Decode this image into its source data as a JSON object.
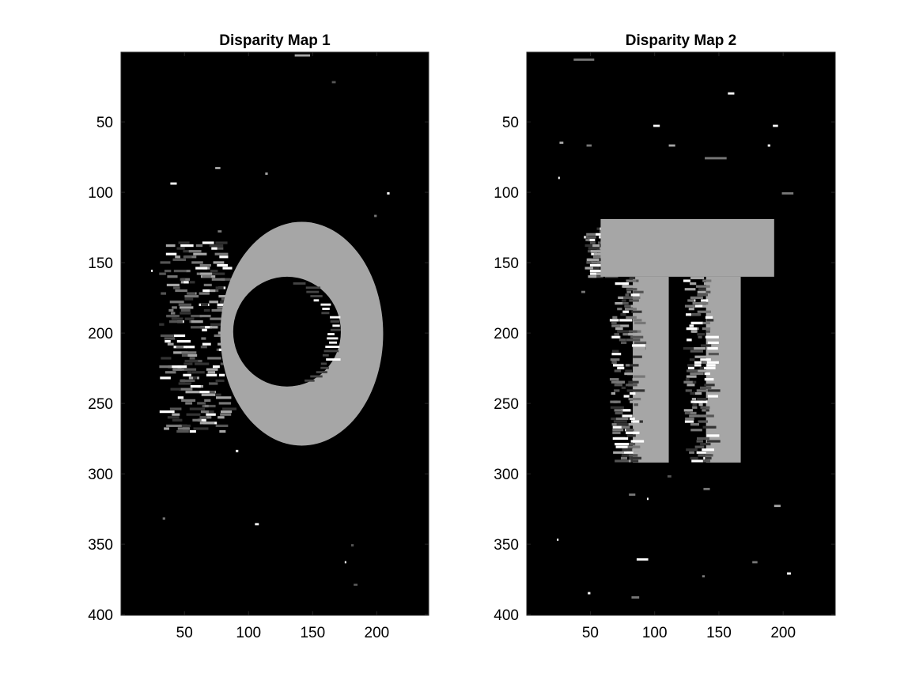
{
  "figure": {
    "background": "#ffffff"
  },
  "chart_data": [
    {
      "type": "heatmap",
      "title": "Disparity Map 1",
      "colormap": "gray",
      "background_color": "#000000",
      "main_color": "#a6a6a6",
      "xlim": [
        0.5,
        240.5
      ],
      "ylim": [
        0.5,
        400.5
      ],
      "y_reversed": true,
      "xticks": [
        50,
        100,
        150,
        200
      ],
      "yticks": [
        50,
        100,
        150,
        200,
        250,
        300,
        350,
        400
      ],
      "xlabel": "",
      "ylabel": "",
      "shape": {
        "kind": "ring",
        "outer": {
          "x": [
            78,
            205
          ],
          "y": [
            121,
            280
          ]
        },
        "inner": {
          "x": [
            88,
            172
          ],
          "y": [
            160,
            238
          ]
        }
      },
      "noise_band": {
        "x": [
          30,
          80
        ],
        "y": [
          135,
          270
        ]
      },
      "speckles": [
        {
          "x": 136,
          "y": 2,
          "w": 12,
          "c": "#a6a6a6"
        },
        {
          "x": 165,
          "y": 21,
          "w": 3,
          "c": "#555555"
        },
        {
          "x": 74,
          "y": 82,
          "w": 4,
          "c": "#a6a6a6"
        },
        {
          "x": 113,
          "y": 86,
          "w": 2,
          "c": "#a6a6a6"
        },
        {
          "x": 39,
          "y": 93,
          "w": 5,
          "c": "#ffffff"
        },
        {
          "x": 208,
          "y": 100,
          "w": 2,
          "c": "#ffffff"
        },
        {
          "x": 198,
          "y": 116,
          "w": 2,
          "c": "#777777"
        },
        {
          "x": 76,
          "y": 127,
          "w": 3,
          "c": "#777777"
        },
        {
          "x": 24,
          "y": 155,
          "w": 1,
          "c": "#ffffff"
        },
        {
          "x": 90,
          "y": 283,
          "w": 2,
          "c": "#ffffff"
        },
        {
          "x": 33,
          "y": 331,
          "w": 2,
          "c": "#777777"
        },
        {
          "x": 105,
          "y": 335,
          "w": 3,
          "c": "#ffffff"
        },
        {
          "x": 180,
          "y": 350,
          "w": 2,
          "c": "#555555"
        },
        {
          "x": 175,
          "y": 362,
          "w": 1,
          "c": "#ffffff"
        },
        {
          "x": 182,
          "y": 378,
          "w": 3,
          "c": "#555555"
        }
      ]
    },
    {
      "type": "heatmap",
      "title": "Disparity Map 2",
      "colormap": "gray",
      "background_color": "#000000",
      "main_color": "#a6a6a6",
      "xlim": [
        0.5,
        240.5
      ],
      "ylim": [
        0.5,
        400.5
      ],
      "y_reversed": true,
      "xticks": [
        50,
        100,
        150,
        200
      ],
      "yticks": [
        50,
        100,
        150,
        200,
        250,
        300,
        350,
        400
      ],
      "xlabel": "",
      "ylabel": "",
      "shape": {
        "kind": "pi",
        "bar": {
          "x": [
            58,
            193
          ],
          "y": [
            119,
            160
          ]
        },
        "legs": [
          {
            "x": [
              83,
              111
            ],
            "y": [
              160,
              292
            ]
          },
          {
            "x": [
              140,
              167
            ],
            "y": [
              160,
              292
            ]
          }
        ]
      },
      "noise_band": {
        "x": [
          45,
          62
        ],
        "y": [
          125,
          160
        ]
      },
      "speckles": [
        {
          "x": 37,
          "y": 5,
          "w": 16,
          "c": "#777777"
        },
        {
          "x": 157,
          "y": 29,
          "w": 5,
          "c": "#ffffff"
        },
        {
          "x": 99,
          "y": 52,
          "w": 5,
          "c": "#ffffff"
        },
        {
          "x": 192,
          "y": 52,
          "w": 4,
          "c": "#ffffff"
        },
        {
          "x": 26,
          "y": 64,
          "w": 3,
          "c": "#a6a6a6"
        },
        {
          "x": 47,
          "y": 66,
          "w": 4,
          "c": "#777777"
        },
        {
          "x": 111,
          "y": 66,
          "w": 5,
          "c": "#a6a6a6"
        },
        {
          "x": 188,
          "y": 66,
          "w": 2,
          "c": "#ffffff"
        },
        {
          "x": 139,
          "y": 75,
          "w": 17,
          "c": "#777777"
        },
        {
          "x": 25,
          "y": 89,
          "w": 1,
          "c": "#ffffff"
        },
        {
          "x": 199,
          "y": 100,
          "w": 9,
          "c": "#777777"
        },
        {
          "x": 43,
          "y": 170,
          "w": 3,
          "c": "#777777"
        },
        {
          "x": 110,
          "y": 301,
          "w": 3,
          "c": "#555555"
        },
        {
          "x": 138,
          "y": 310,
          "w": 5,
          "c": "#777777"
        },
        {
          "x": 80,
          "y": 314,
          "w": 5,
          "c": "#777777"
        },
        {
          "x": 94,
          "y": 317,
          "w": 1,
          "c": "#ffffff"
        },
        {
          "x": 193,
          "y": 322,
          "w": 5,
          "c": "#a6a6a6"
        },
        {
          "x": 24,
          "y": 346,
          "w": 1,
          "c": "#ffffff"
        },
        {
          "x": 86,
          "y": 360,
          "w": 9,
          "c": "#ffffff"
        },
        {
          "x": 176,
          "y": 362,
          "w": 4,
          "c": "#777777"
        },
        {
          "x": 203,
          "y": 370,
          "w": 3,
          "c": "#ffffff"
        },
        {
          "x": 137,
          "y": 372,
          "w": 2,
          "c": "#777777"
        },
        {
          "x": 48,
          "y": 384,
          "w": 2,
          "c": "#ffffff"
        },
        {
          "x": 82,
          "y": 387,
          "w": 6,
          "c": "#777777"
        }
      ]
    }
  ]
}
